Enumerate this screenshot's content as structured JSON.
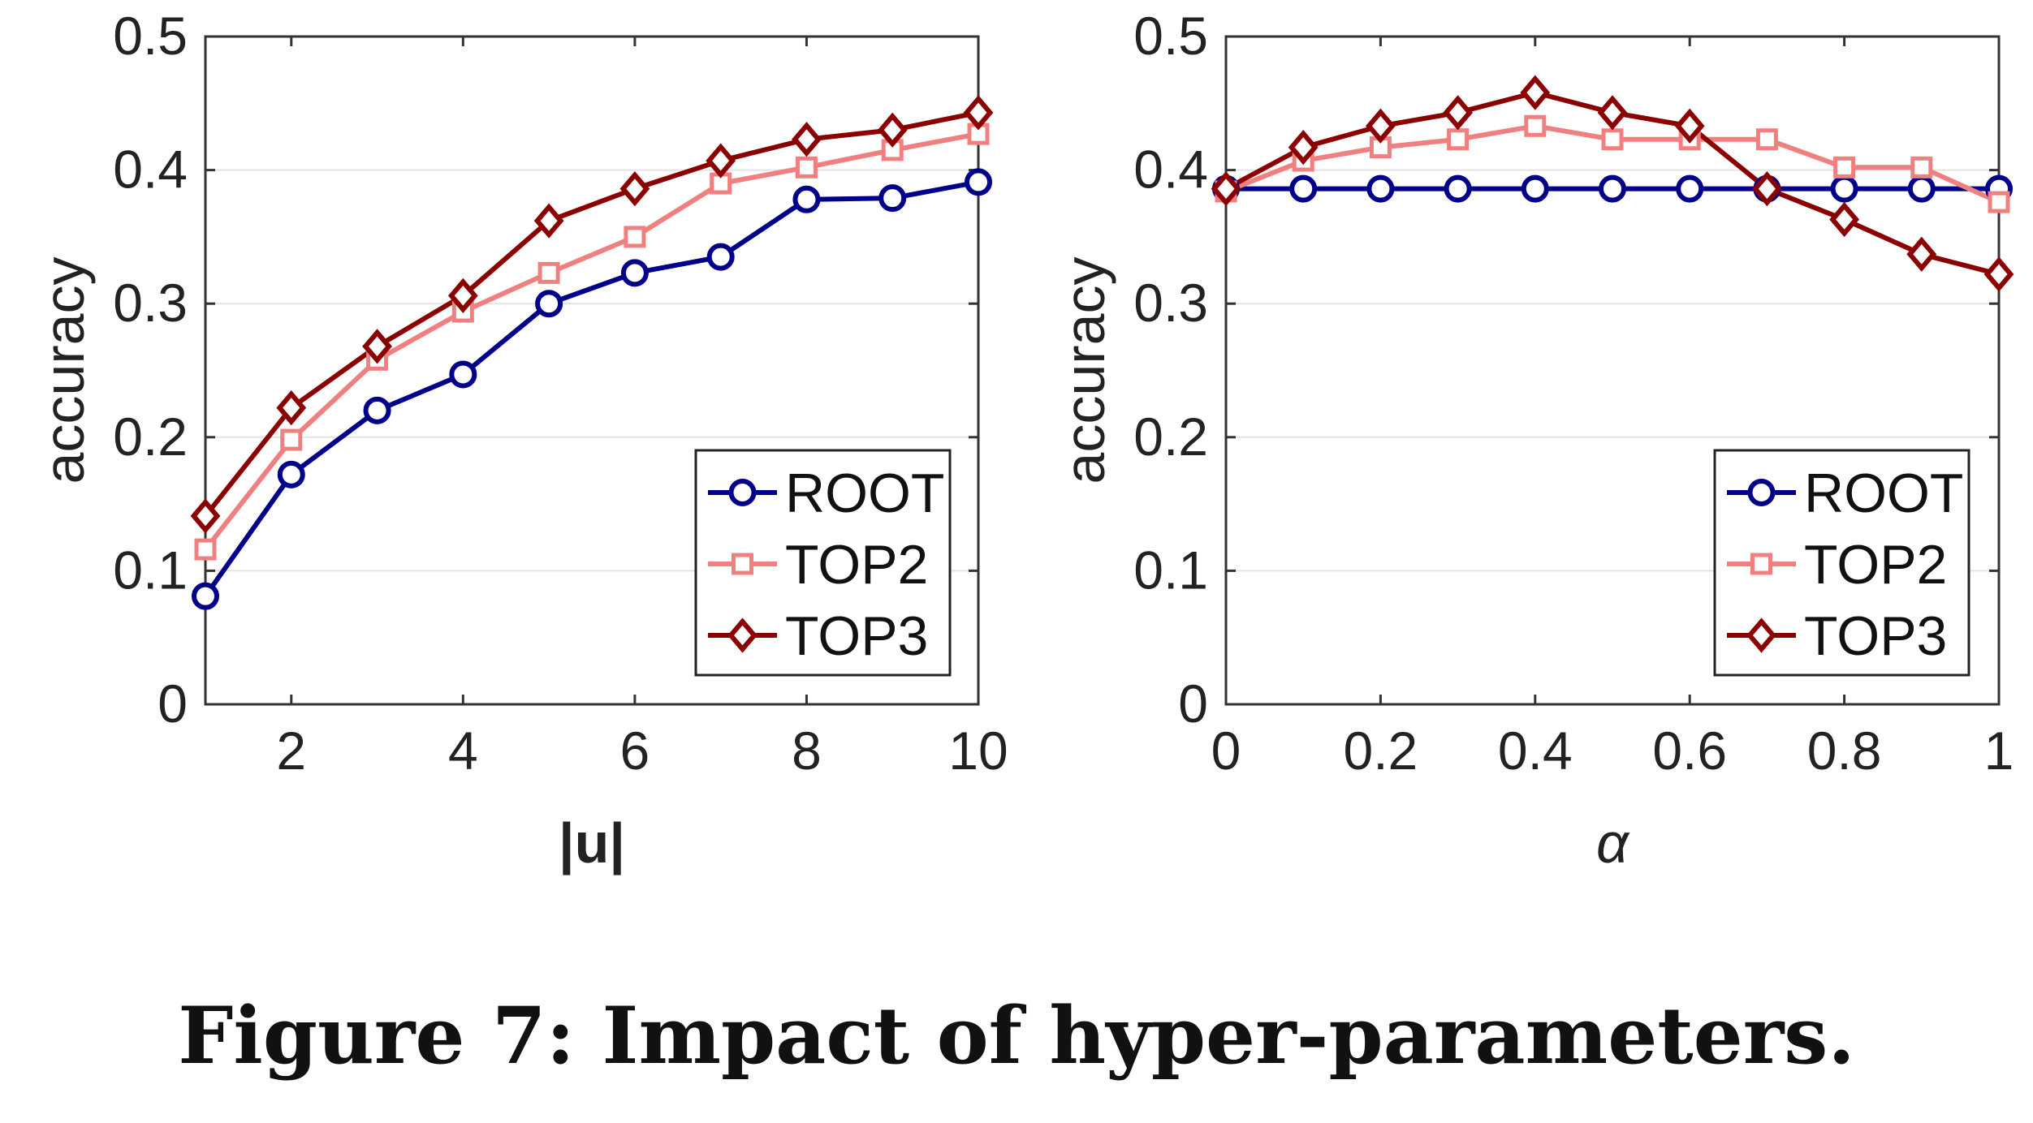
{
  "caption": "Figure 7: Impact of hyper-parameters.",
  "chart_data": [
    {
      "type": "line",
      "title": "",
      "xlabel": "|u|",
      "ylabel": "accuracy",
      "xlim": [
        1,
        10
      ],
      "ylim": [
        0,
        0.5
      ],
      "xticks": [
        2,
        4,
        6,
        8,
        10
      ],
      "yticks": [
        0,
        0.1,
        0.2,
        0.3,
        0.4,
        0.5
      ],
      "xtick_labels": [
        "2",
        "4",
        "6",
        "8",
        "10"
      ],
      "ytick_labels": [
        "0",
        "0.1",
        "0.2",
        "0.3",
        "0.4",
        "0.5"
      ],
      "grid": "horizontal",
      "legend_position": "bottom-right",
      "x": [
        1,
        2,
        3,
        4,
        5,
        6,
        7,
        8,
        9,
        10
      ],
      "series": [
        {
          "name": "ROOT",
          "color": "#00008b",
          "marker": "circle",
          "values": [
            0.081,
            0.172,
            0.22,
            0.247,
            0.3,
            0.323,
            0.335,
            0.378,
            0.379,
            0.391
          ]
        },
        {
          "name": "TOP2",
          "color": "#f08080",
          "marker": "square",
          "values": [
            0.116,
            0.198,
            0.258,
            0.294,
            0.323,
            0.35,
            0.39,
            0.402,
            0.415,
            0.427
          ]
        },
        {
          "name": "TOP3",
          "color": "#8b0000",
          "marker": "diamond",
          "values": [
            0.141,
            0.222,
            0.268,
            0.306,
            0.362,
            0.386,
            0.407,
            0.423,
            0.43,
            0.443
          ]
        }
      ]
    },
    {
      "type": "line",
      "title": "",
      "xlabel": "α",
      "ylabel": "accuracy",
      "xlim": [
        0,
        1
      ],
      "ylim": [
        0,
        0.5
      ],
      "xticks": [
        0,
        0.2,
        0.4,
        0.6,
        0.8,
        1
      ],
      "yticks": [
        0,
        0.1,
        0.2,
        0.3,
        0.4,
        0.5
      ],
      "xtick_labels": [
        "0",
        "0.2",
        "0.4",
        "0.6",
        "0.8",
        "1"
      ],
      "ytick_labels": [
        "0",
        "0.1",
        "0.2",
        "0.3",
        "0.4",
        "0.5"
      ],
      "grid": "horizontal",
      "legend_position": "bottom-right",
      "x": [
        0,
        0.1,
        0.2,
        0.3,
        0.4,
        0.5,
        0.6,
        0.7,
        0.8,
        0.9,
        1.0
      ],
      "series": [
        {
          "name": "ROOT",
          "color": "#00008b",
          "marker": "circle",
          "values": [
            0.386,
            0.386,
            0.386,
            0.386,
            0.386,
            0.386,
            0.386,
            0.386,
            0.386,
            0.386,
            0.386
          ]
        },
        {
          "name": "TOP2",
          "color": "#f08080",
          "marker": "square",
          "values": [
            0.384,
            0.407,
            0.417,
            0.423,
            0.433,
            0.423,
            0.423,
            0.423,
            0.402,
            0.402,
            0.376
          ]
        },
        {
          "name": "TOP3",
          "color": "#8b0000",
          "marker": "diamond",
          "values": [
            0.386,
            0.417,
            0.433,
            0.443,
            0.458,
            0.443,
            0.433,
            0.386,
            0.363,
            0.337,
            0.322
          ]
        }
      ]
    }
  ]
}
